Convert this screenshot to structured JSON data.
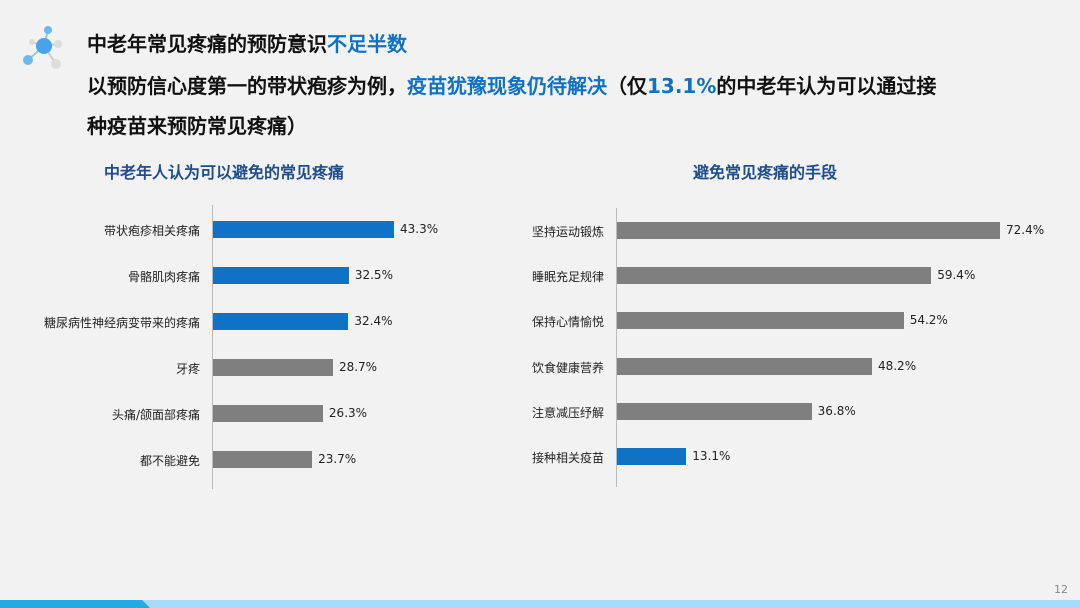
{
  "header": {
    "line1_a": "中老年常见疼痛的预防意识",
    "line1_b": "不足半数",
    "line2_a": "以预防信心度第一的带状疱疹为例，",
    "line2_b": "疫苗犹豫现象仍待解决",
    "line2_c": "（仅",
    "line2_d": "13.1%",
    "line2_e": "的中老年认为可以通过接",
    "line3": "种疫苗来预防常见疼痛）"
  },
  "page_number": "12",
  "chart_data": [
    {
      "type": "bar",
      "orientation": "horizontal",
      "title": "中老年人认为可以避免的常见疼痛",
      "categories": [
        "带状疱疹相关疼痛",
        "骨骼肌肉疼痛",
        "糖尿病性神经病变带来的疼痛",
        "牙疼",
        "头痛/颌面部疼痛",
        "都不能避免"
      ],
      "values": [
        43.3,
        32.5,
        32.4,
        28.7,
        26.3,
        23.7
      ],
      "labels": [
        "43.3%",
        "32.5%",
        "32.4%",
        "28.7%",
        "26.3%",
        "23.7%"
      ],
      "colors": [
        "#0f72c4",
        "#0f72c4",
        "#0f72c4",
        "#7f7f7f",
        "#7f7f7f",
        "#7f7f7f"
      ]
    },
    {
      "type": "bar",
      "orientation": "horizontal",
      "title": "避免常见疼痛的手段",
      "categories": [
        "坚持运动锻炼",
        "睡眠充足规律",
        "保持心情愉悦",
        "饮食健康营养",
        "注意减压纾解",
        "接种相关疫苗"
      ],
      "values": [
        72.4,
        59.4,
        54.2,
        48.2,
        36.8,
        13.1
      ],
      "labels": [
        "72.4%",
        "59.4%",
        "54.2%",
        "48.2%",
        "36.8%",
        "13.1%"
      ],
      "colors": [
        "#7f7f7f",
        "#7f7f7f",
        "#7f7f7f",
        "#7f7f7f",
        "#7f7f7f",
        "#0f72c4"
      ]
    }
  ]
}
